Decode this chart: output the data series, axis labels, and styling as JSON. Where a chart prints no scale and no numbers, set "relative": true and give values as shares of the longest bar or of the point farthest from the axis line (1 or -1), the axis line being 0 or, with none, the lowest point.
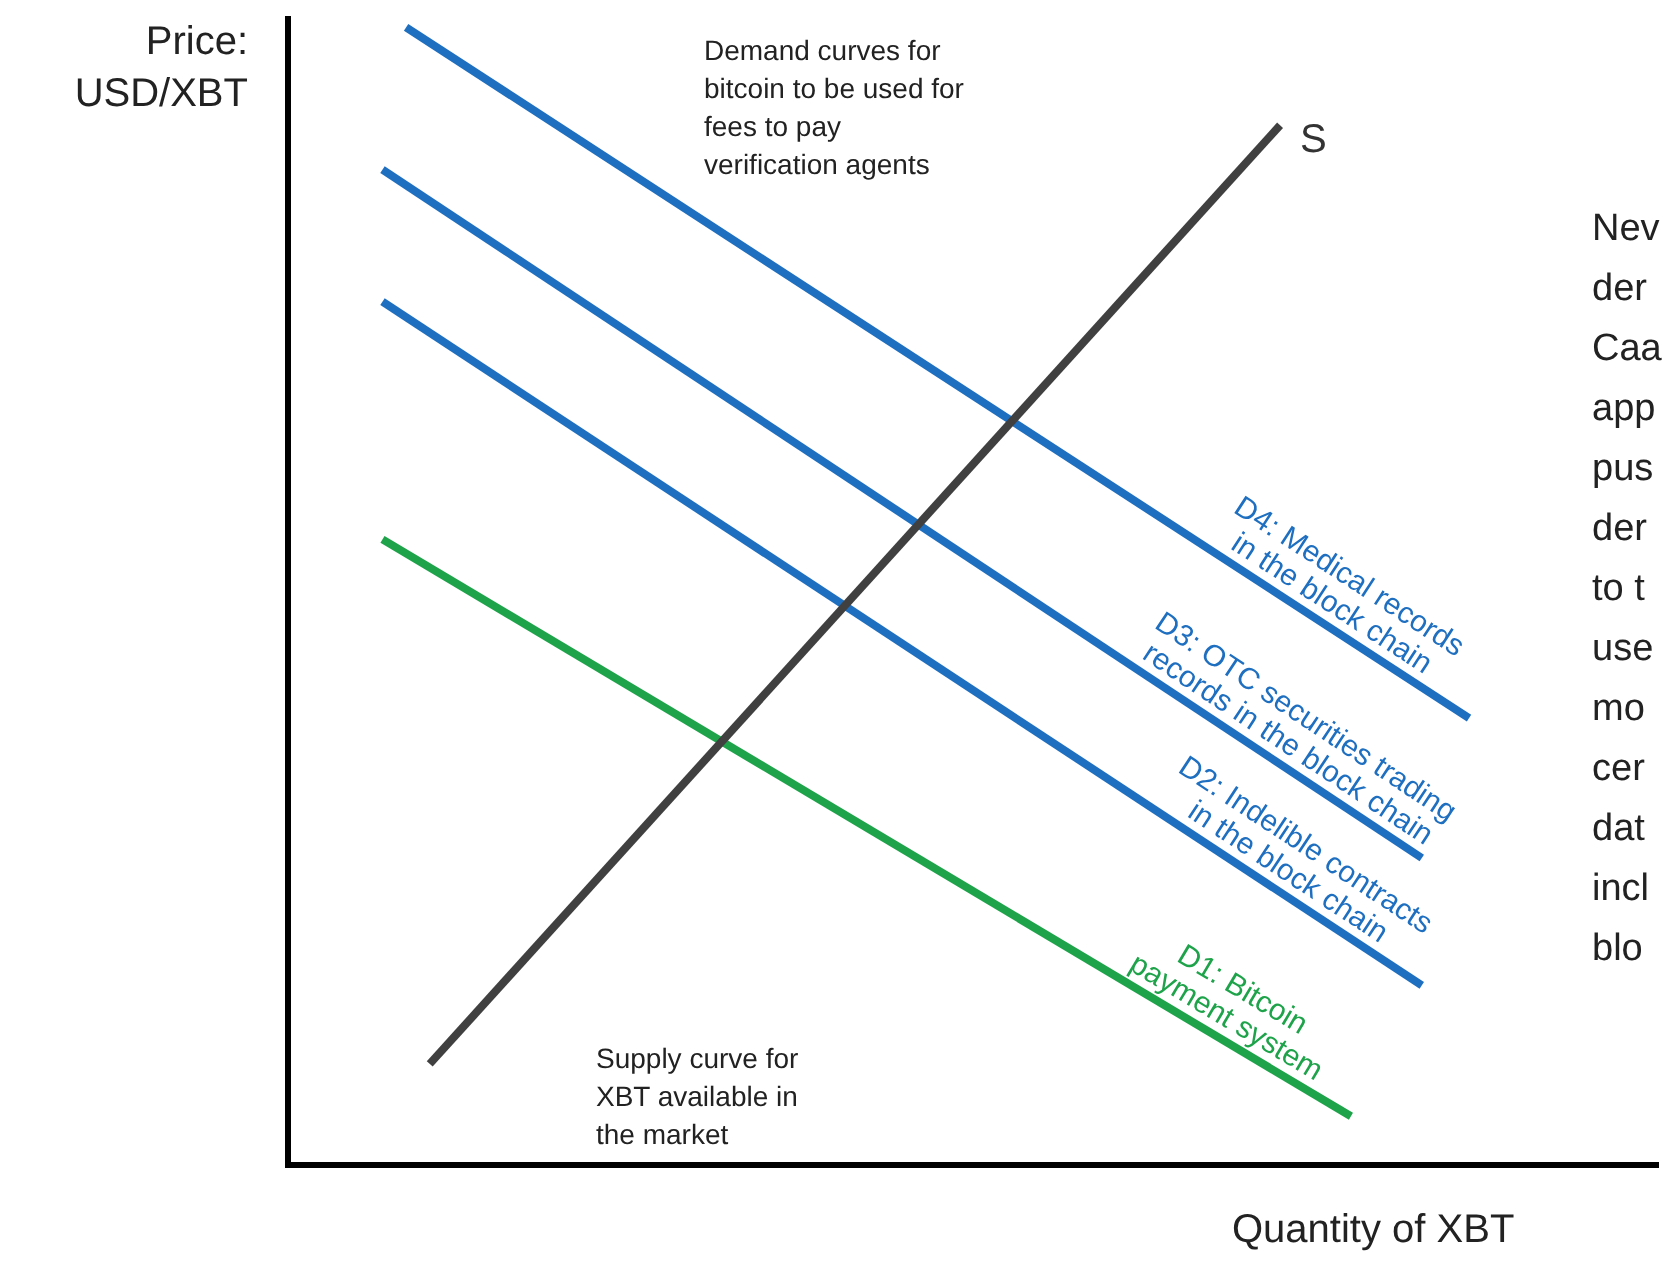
{
  "chart_data": {
    "type": "line",
    "relative": true,
    "xlabel": "Quantity of XBT",
    "ylabel": "Price:\nUSD/XBT",
    "legend": false,
    "marker": "none",
    "line_style": "solid",
    "categories": [
      null,
      null,
      null,
      null,
      null,
      null,
      null,
      null,
      null,
      null,
      null,
      null,
      null,
      null,
      null,
      null,
      null,
      null,
      null,
      null,
      null,
      null,
      null,
      null,
      null,
      null,
      null,
      null,
      null,
      null,
      null,
      null,
      null,
      null,
      null,
      null,
      null,
      null,
      null,
      null,
      null,
      null,
      null,
      null,
      null,
      null,
      null,
      null,
      null,
      null,
      null,
      null,
      null,
      null,
      null,
      null,
      null,
      null,
      null
    ],
    "series": [
      {
        "name": "S",
        "color": "#404040",
        "values": [
          null,
          null,
          null,
          null,
          null,
          null,
          0.089,
          null,
          null,
          null,
          null,
          null,
          null,
          null,
          null,
          null,
          null,
          null,
          null,
          null,
          null,
          null,
          null,
          null,
          null,
          null,
          null,
          null,
          null,
          null,
          null,
          null,
          null,
          null,
          null,
          null,
          null,
          null,
          null,
          null,
          null,
          null,
          0.914,
          null,
          null,
          null,
          null,
          null,
          null,
          null,
          null,
          null,
          null,
          null,
          null,
          null,
          null,
          null,
          null
        ]
      },
      {
        "name": "D4: Medical records\nin the block chain",
        "color": "#1f6fc0",
        "values": [
          null,
          null,
          null,
          null,
          null,
          1,
          null,
          null,
          null,
          null,
          null,
          null,
          null,
          null,
          null,
          null,
          null,
          null,
          null,
          null,
          null,
          null,
          null,
          null,
          null,
          null,
          null,
          null,
          null,
          null,
          null,
          null,
          null,
          null,
          null,
          null,
          null,
          null,
          null,
          null,
          null,
          null,
          null,
          null,
          null,
          null,
          null,
          null,
          null,
          null,
          0.393,
          null,
          null,
          null,
          null,
          null,
          null,
          null,
          null
        ]
      },
      {
        "name": "D3: OTC securities trading\nrecords in the block chain",
        "color": "#1f6fc0",
        "values": [
          null,
          null,
          null,
          null,
          0.875,
          null,
          null,
          null,
          null,
          null,
          null,
          null,
          null,
          null,
          null,
          null,
          null,
          null,
          null,
          null,
          null,
          null,
          null,
          null,
          null,
          null,
          null,
          null,
          null,
          null,
          null,
          null,
          null,
          null,
          null,
          null,
          null,
          null,
          null,
          null,
          null,
          null,
          null,
          null,
          null,
          null,
          null,
          null,
          0.27,
          null,
          null,
          null,
          null,
          null,
          null,
          null,
          null,
          null,
          null
        ]
      },
      {
        "name": "D2: Indelible contracts\nin the block chain",
        "color": "#1f6fc0",
        "values": [
          null,
          null,
          null,
          null,
          0.759,
          null,
          null,
          null,
          null,
          null,
          null,
          null,
          null,
          null,
          null,
          null,
          null,
          null,
          null,
          null,
          null,
          null,
          null,
          null,
          null,
          null,
          null,
          null,
          null,
          null,
          null,
          null,
          null,
          null,
          null,
          null,
          null,
          null,
          null,
          null,
          null,
          null,
          null,
          null,
          null,
          null,
          null,
          null,
          0.158,
          null,
          null,
          null,
          null,
          null,
          null,
          null,
          null,
          null,
          null
        ]
      },
      {
        "name": "D1: Bitcoin\npayment system",
        "color": "#1ea34a",
        "values": [
          null,
          null,
          null,
          null,
          0.55,
          null,
          null,
          null,
          null,
          null,
          null,
          null,
          null,
          null,
          null,
          null,
          null,
          null,
          null,
          null,
          null,
          null,
          null,
          null,
          null,
          null,
          null,
          null,
          null,
          null,
          null,
          null,
          null,
          null,
          null,
          null,
          null,
          null,
          null,
          null,
          null,
          null,
          null,
          null,
          null,
          0.043,
          null,
          null,
          null,
          null,
          null,
          null,
          null,
          null,
          null,
          null,
          null,
          null,
          null
        ]
      }
    ],
    "annotations": [
      "Demand curves for\nbitcoin to be used for\nfees to pay\nverification agents",
      "Supply curve for\nXBT available in\nthe market",
      "Nev\nder\nCaa\napp\npus\nder\nto t\nuse\nmo\ncer\ndat\nincl\nblo"
    ]
  }
}
